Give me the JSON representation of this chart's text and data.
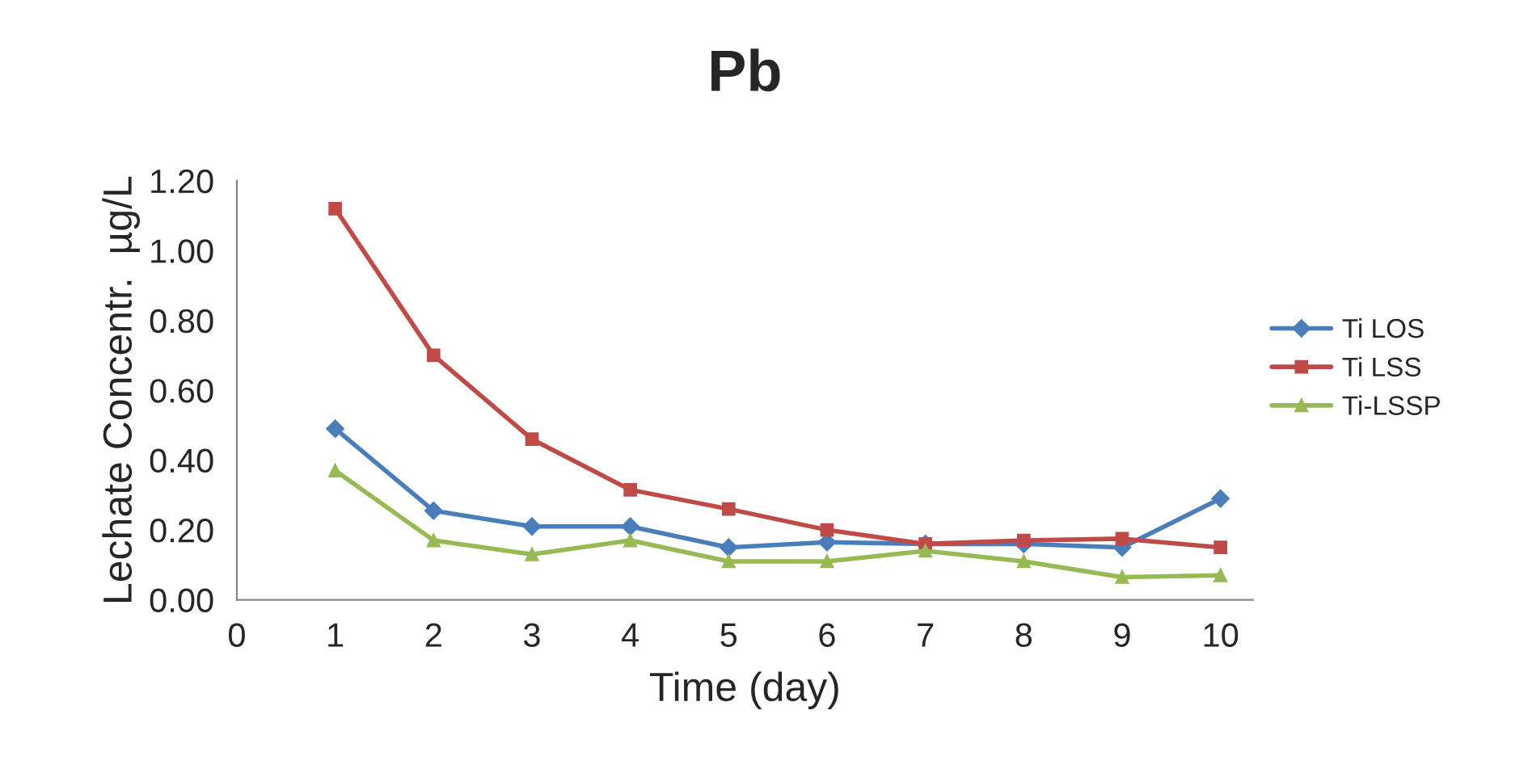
{
  "chart_data": {
    "type": "line",
    "title": "Pb",
    "xlabel": "Time (day)",
    "ylabel": "Lechate Concentr.  µg/L",
    "x": [
      1,
      2,
      3,
      4,
      5,
      6,
      7,
      8,
      9,
      10
    ],
    "xlim": [
      0,
      10.33
    ],
    "xticks": [
      0,
      1,
      2,
      3,
      4,
      5,
      6,
      7,
      8,
      9,
      10
    ],
    "ylim": [
      0,
      1.2
    ],
    "yticks": [
      {
        "value": 0,
        "label": "0.00"
      },
      {
        "value": 0.2,
        "label": "0.20"
      },
      {
        "value": 0.4,
        "label": "0.40"
      },
      {
        "value": 0.6,
        "label": "0.60"
      },
      {
        "value": 0.8,
        "label": "0.80"
      },
      {
        "value": 1.0,
        "label": "1.00"
      },
      {
        "value": 1.2,
        "label": "1.20"
      }
    ],
    "grid": false,
    "legend": "right",
    "series": [
      {
        "name": "Ti LOS",
        "color": "#4a7ebb",
        "marker": "diamond",
        "values": [
          0.49,
          0.255,
          0.21,
          0.21,
          0.15,
          0.165,
          0.16,
          0.16,
          0.15,
          0.29
        ]
      },
      {
        "name": "Ti LSS",
        "color": "#be4b48",
        "marker": "square",
        "values": [
          1.12,
          0.7,
          0.46,
          0.315,
          0.26,
          0.2,
          0.16,
          0.17,
          0.175,
          0.15
        ]
      },
      {
        "name": "Ti-LSSP",
        "color": "#98b954",
        "marker": "triangle",
        "values": [
          0.37,
          0.17,
          0.13,
          0.17,
          0.11,
          0.11,
          0.14,
          0.11,
          0.065,
          0.07
        ]
      }
    ]
  }
}
